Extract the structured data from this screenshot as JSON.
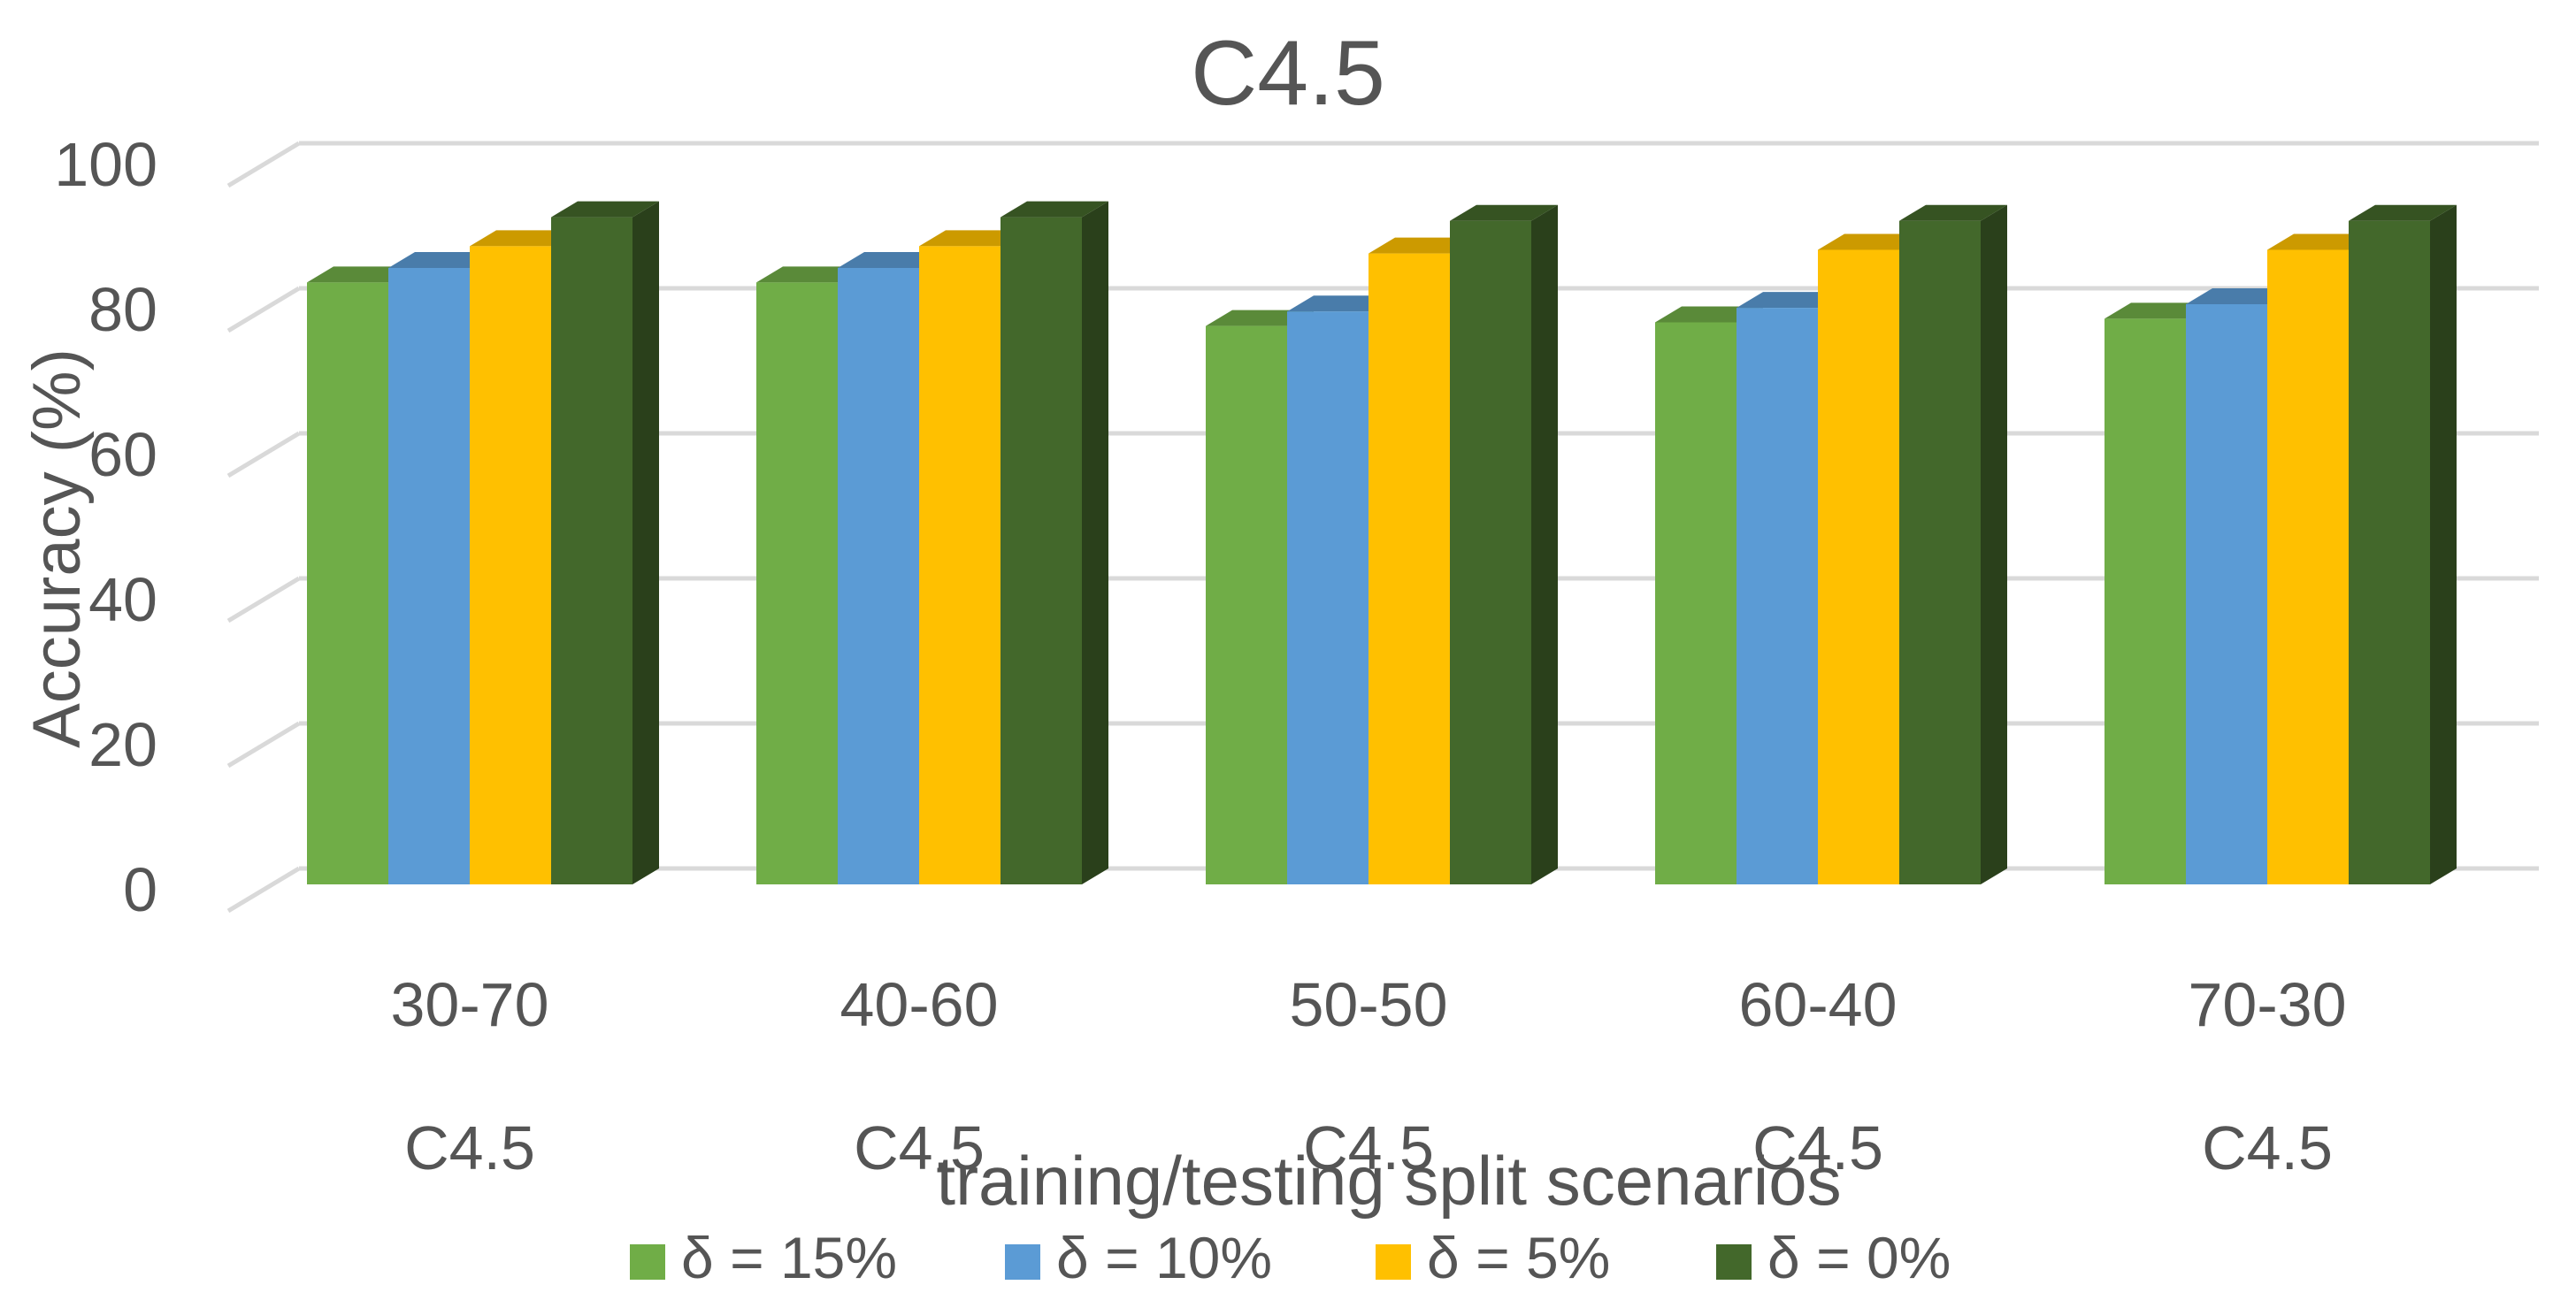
{
  "chart_data": {
    "type": "bar",
    "title": "C4.5",
    "xlabel": "training/testing split scenarios",
    "ylabel": "Accuracy (%)",
    "ylim": [
      0,
      100
    ],
    "yticks": [
      0,
      20,
      40,
      60,
      80,
      100
    ],
    "grid": true,
    "three_d": true,
    "legend_position": "bottom",
    "categories": [
      "30-70",
      "40-60",
      "50-50",
      "60-40",
      "70-30"
    ],
    "group_labels": [
      "C4.5",
      "C4.5",
      "C4.5",
      "C4.5",
      "C4.5"
    ],
    "series": [
      {
        "name": "δ = 15%",
        "color": "#70ad47",
        "values": [
          83,
          83,
          77,
          77.5,
          78
        ]
      },
      {
        "name": "δ = 10%",
        "color": "#5b9bd5",
        "values": [
          85,
          85,
          79,
          79.5,
          80
        ]
      },
      {
        "name": "δ = 5%",
        "color": "#ffc000",
        "values": [
          88,
          88,
          87,
          87.5,
          87.5
        ]
      },
      {
        "name": "δ = 0%",
        "color": "#43682b",
        "values": [
          92,
          92,
          91.5,
          91.5,
          91.5
        ]
      }
    ]
  }
}
